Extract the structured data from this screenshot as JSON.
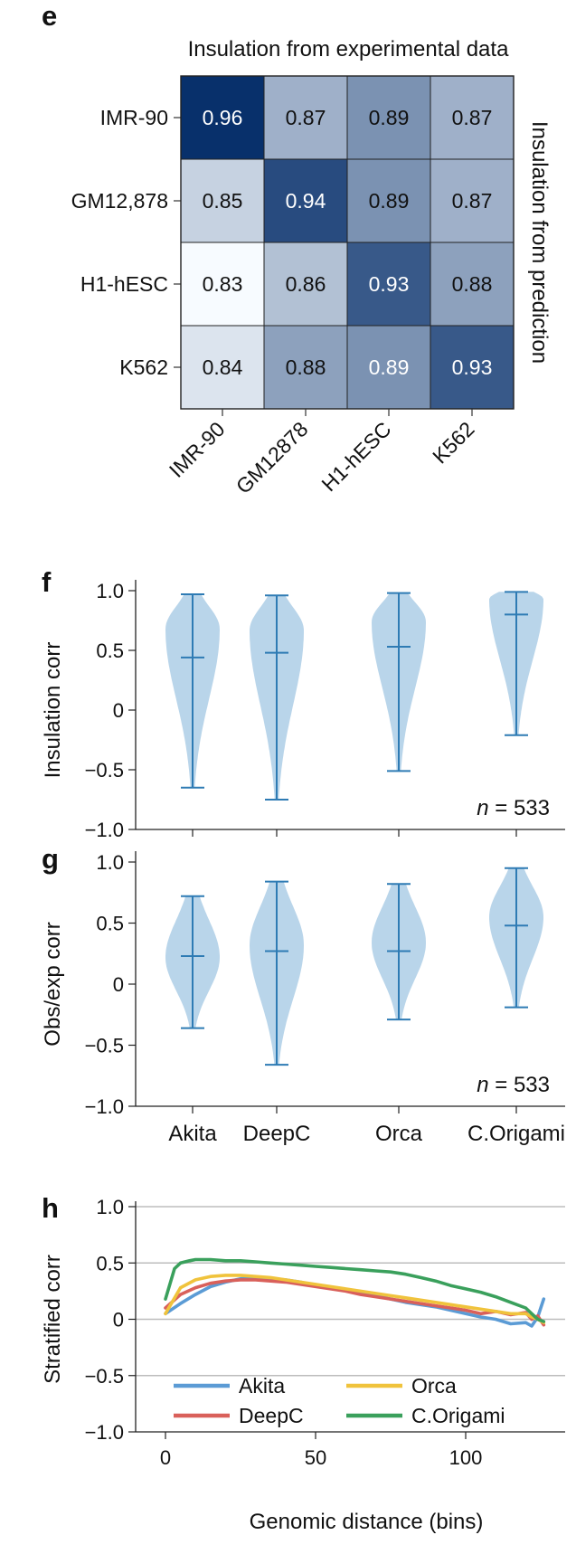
{
  "panels": {
    "e": "e",
    "f": "f",
    "g": "g",
    "h": "h"
  },
  "chart_data": [
    {
      "type": "heatmap",
      "panel": "e",
      "title": "Insulation from experimental data",
      "right_label": "Insulation from prediction",
      "row_labels": [
        "IMR-90",
        "GM12,878",
        "H1-hESC",
        "K562"
      ],
      "col_labels": [
        "IMR-90",
        "GM12878",
        "H1-hESC",
        "K562"
      ],
      "values": [
        [
          0.96,
          0.87,
          0.89,
          0.87
        ],
        [
          0.85,
          0.94,
          0.89,
          0.87
        ],
        [
          0.83,
          0.86,
          0.93,
          0.88
        ],
        [
          0.84,
          0.88,
          0.89,
          0.93
        ]
      ],
      "colormap": {
        "low": "#f7fbff",
        "high": "#08306b",
        "vmin": 0.83,
        "vmax": 0.96
      },
      "light_text_cells": [
        [
          0,
          0
        ],
        [
          1,
          1
        ],
        [
          2,
          2
        ],
        [
          3,
          2
        ],
        [
          3,
          3
        ]
      ]
    },
    {
      "type": "violin",
      "panel": "f",
      "ylabel": "Insulation corr",
      "categories": [
        "Akita",
        "DeepC",
        "Orca",
        "C.Origami"
      ],
      "yticks": [
        "1.0",
        "0.5",
        "0",
        "−0.5",
        "−1.0"
      ],
      "ylim": [
        -1.0,
        1.0
      ],
      "annotation": {
        "italic": "n",
        "text": " = 533"
      },
      "violin_color": "#b9d5ea",
      "line_color": "#2e7bb4",
      "series": [
        {
          "name": "Akita",
          "min": -0.65,
          "max": 0.97,
          "median": 0.44,
          "mode": 0.68
        },
        {
          "name": "DeepC",
          "min": -0.75,
          "max": 0.96,
          "median": 0.48,
          "mode": 0.67
        },
        {
          "name": "Orca",
          "min": -0.51,
          "max": 0.98,
          "median": 0.53,
          "mode": 0.74
        },
        {
          "name": "C.Origami",
          "min": -0.21,
          "max": 0.99,
          "median": 0.8,
          "mode": 0.93
        }
      ]
    },
    {
      "type": "violin",
      "panel": "g",
      "ylabel": "Obs/exp corr",
      "categories": [
        "Akita",
        "DeepC",
        "Orca",
        "C.Origami"
      ],
      "yticks": [
        "1.0",
        "0.5",
        "0",
        "−0.5",
        "−1.0"
      ],
      "ylim": [
        -1.0,
        1.0
      ],
      "annotation": {
        "italic": "n",
        "text": " = 533"
      },
      "violin_color": "#b9d5ea",
      "line_color": "#2e7bb4",
      "series": [
        {
          "name": "Akita",
          "min": -0.36,
          "max": 0.72,
          "median": 0.23,
          "mode": 0.22
        },
        {
          "name": "DeepC",
          "min": -0.66,
          "max": 0.84,
          "median": 0.27,
          "mode": 0.32
        },
        {
          "name": "Orca",
          "min": -0.29,
          "max": 0.82,
          "median": 0.27,
          "mode": 0.34
        },
        {
          "name": "C.Origami",
          "min": -0.19,
          "max": 0.95,
          "median": 0.48,
          "mode": 0.55
        }
      ]
    },
    {
      "type": "line",
      "panel": "h",
      "ylabel": "Stratified corr",
      "xlabel": "Genomic distance (bins)",
      "xticks": [
        0,
        50,
        100
      ],
      "yticks": [
        "1.0",
        "0.5",
        "0",
        "−0.5",
        "−1.0"
      ],
      "xlim": [
        -5,
        132
      ],
      "ylim": [
        -1.0,
        1.0
      ],
      "grid": "horizontal",
      "legend": "bottom",
      "series": [
        {
          "name": "Akita",
          "color": "#5b9bd5",
          "x": [
            0,
            5,
            10,
            15,
            20,
            25,
            30,
            35,
            40,
            45,
            50,
            55,
            60,
            65,
            70,
            75,
            80,
            85,
            90,
            95,
            100,
            105,
            110,
            115,
            120,
            122,
            124,
            126
          ],
          "y": [
            0.05,
            0.14,
            0.22,
            0.29,
            0.33,
            0.36,
            0.37,
            0.36,
            0.35,
            0.33,
            0.3,
            0.28,
            0.26,
            0.24,
            0.21,
            0.18,
            0.15,
            0.13,
            0.11,
            0.08,
            0.05,
            0.02,
            0.0,
            -0.04,
            -0.03,
            -0.06,
            0.02,
            0.18
          ]
        },
        {
          "name": "DeepC",
          "color": "#d9605a",
          "x": [
            0,
            5,
            10,
            15,
            20,
            25,
            30,
            35,
            40,
            45,
            50,
            55,
            60,
            65,
            70,
            75,
            80,
            85,
            90,
            95,
            100,
            105,
            110,
            115,
            120,
            122,
            124,
            126
          ],
          "y": [
            0.1,
            0.22,
            0.28,
            0.32,
            0.34,
            0.35,
            0.35,
            0.34,
            0.33,
            0.31,
            0.29,
            0.27,
            0.25,
            0.22,
            0.2,
            0.18,
            0.16,
            0.14,
            0.12,
            0.1,
            0.08,
            0.05,
            0.07,
            0.04,
            0.06,
            0.0,
            0.03,
            -0.05
          ]
        },
        {
          "name": "Orca",
          "color": "#f0c33c",
          "x": [
            0,
            5,
            10,
            15,
            20,
            25,
            30,
            35,
            40,
            45,
            50,
            55,
            60,
            65,
            70,
            75,
            80,
            85,
            90,
            95,
            100,
            105,
            110,
            115,
            120,
            122,
            124,
            126
          ],
          "y": [
            0.05,
            0.28,
            0.35,
            0.38,
            0.39,
            0.39,
            0.38,
            0.37,
            0.35,
            0.33,
            0.31,
            0.29,
            0.27,
            0.25,
            0.23,
            0.21,
            0.19,
            0.17,
            0.15,
            0.13,
            0.11,
            0.09,
            0.07,
            0.05,
            0.05,
            0.02,
            0.0,
            -0.03
          ]
        },
        {
          "name": "C.Origami",
          "color": "#3aa05c",
          "x": [
            0,
            3,
            5,
            8,
            10,
            15,
            20,
            25,
            30,
            35,
            40,
            45,
            50,
            55,
            60,
            65,
            70,
            75,
            80,
            85,
            90,
            95,
            100,
            105,
            110,
            115,
            120,
            122,
            124,
            126
          ],
          "y": [
            0.18,
            0.45,
            0.5,
            0.52,
            0.53,
            0.53,
            0.52,
            0.52,
            0.51,
            0.5,
            0.49,
            0.48,
            0.47,
            0.46,
            0.45,
            0.44,
            0.43,
            0.42,
            0.4,
            0.37,
            0.34,
            0.3,
            0.27,
            0.24,
            0.2,
            0.15,
            0.1,
            0.05,
            0.0,
            -0.02
          ]
        }
      ]
    }
  ]
}
